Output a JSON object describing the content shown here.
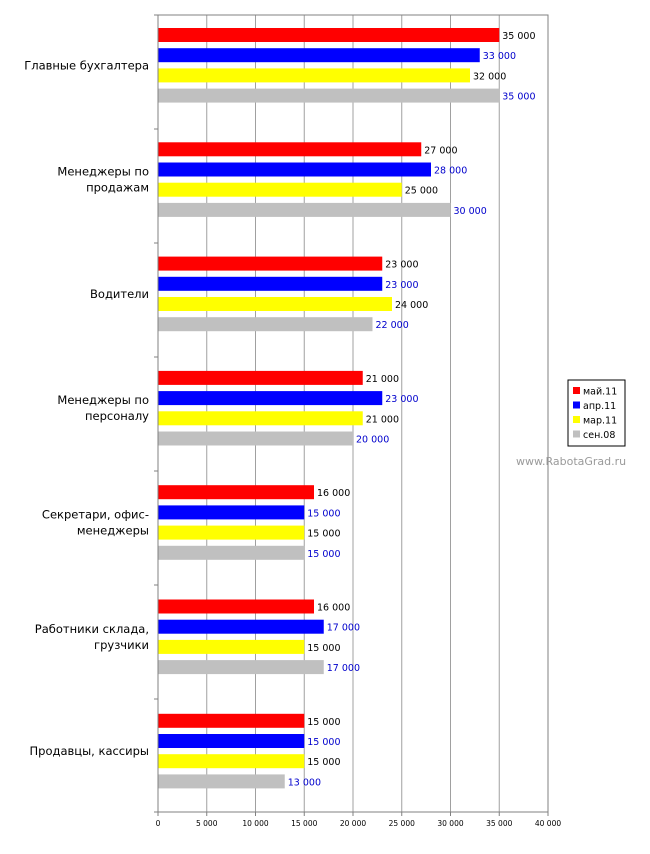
{
  "chart_data": {
    "type": "bar",
    "orientation": "horizontal",
    "categories": [
      [
        "Главные бухгалтера"
      ],
      [
        "Менеджеры по",
        "продажам"
      ],
      [
        "Водители"
      ],
      [
        "Менеджеры по",
        "персоналу"
      ],
      [
        "Секретари, офис-",
        "менеджеры"
      ],
      [
        "Работники склада,",
        "грузчики"
      ],
      [
        "Продавцы, кассиры"
      ]
    ],
    "series": [
      {
        "name": "май.11",
        "color": "#ff0000",
        "label_color": "#000000",
        "values": [
          35000,
          27000,
          23000,
          21000,
          16000,
          16000,
          15000
        ],
        "labels": [
          "35 000",
          "27 000",
          "23 000",
          "21 000",
          "16 000",
          "16 000",
          "15 000"
        ]
      },
      {
        "name": "апр.11",
        "color": "#0000ff",
        "label_color": "#0000cc",
        "values": [
          33000,
          28000,
          23000,
          23000,
          15000,
          17000,
          15000
        ],
        "labels": [
          "33 000",
          "28 000",
          "23 000",
          "23 000",
          "15 000",
          "17 000",
          "15 000"
        ]
      },
      {
        "name": "мар.11",
        "color": "#ffff00",
        "label_color": "#000000",
        "values": [
          32000,
          25000,
          24000,
          21000,
          15000,
          15000,
          15000
        ],
        "labels": [
          "32 000",
          "25 000",
          "24 000",
          "21 000",
          "15 000",
          "15 000",
          "15 000"
        ]
      },
      {
        "name": "сен.08",
        "color": "#c0c0c0",
        "label_color": "#0000cc",
        "values": [
          35000,
          30000,
          22000,
          20000,
          15000,
          17000,
          13000
        ],
        "labels": [
          "35 000",
          "30 000",
          "22 000",
          "20 000",
          "15 000",
          "17 000",
          "13 000"
        ]
      }
    ],
    "xlim": [
      0,
      40000
    ],
    "xticks": [
      0,
      5000,
      10000,
      15000,
      20000,
      25000,
      30000,
      35000,
      40000
    ],
    "xtick_labels": [
      "0",
      "5 000",
      "10 000",
      "15 000",
      "20 000",
      "25 000",
      "30 000",
      "35 000",
      "40 000"
    ],
    "grid": true,
    "legend_position": "right",
    "watermark": "www.RabotaGrad.ru"
  }
}
